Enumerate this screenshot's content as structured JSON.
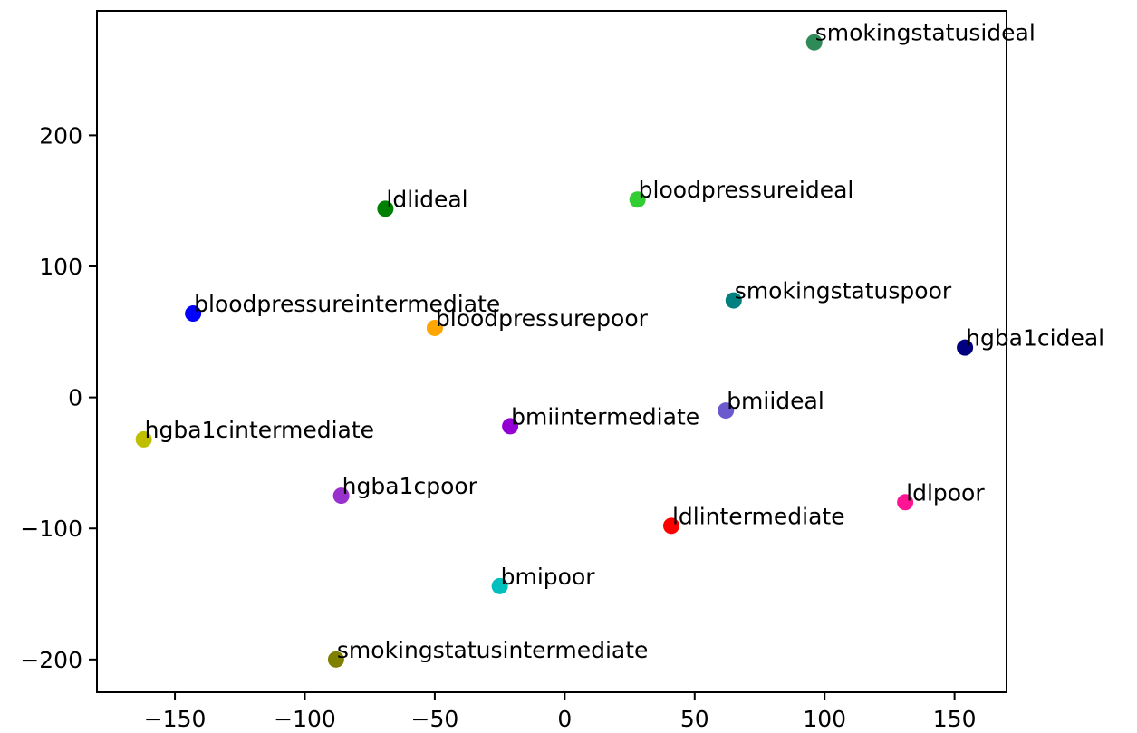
{
  "chart_data": {
    "type": "scatter",
    "title": "",
    "xlabel": "",
    "ylabel": "",
    "xlim": [
      -180,
      170
    ],
    "ylim": [
      -225,
      295
    ],
    "xticks": [
      -150,
      -100,
      -50,
      0,
      50,
      100,
      150
    ],
    "yticks": [
      -200,
      -100,
      0,
      100,
      200
    ],
    "xtick_labels": [
      "−150",
      "−100",
      "−50",
      "0",
      "50",
      "100",
      "150"
    ],
    "ytick_labels": [
      "−200",
      "−100",
      "0",
      "100",
      "200"
    ],
    "grid": false,
    "legend": "none",
    "points": [
      {
        "label": "smokingstatusideal",
        "x": 96,
        "y": 271,
        "color": "#2e8b57"
      },
      {
        "label": "ldlideal",
        "x": -69,
        "y": 144,
        "color": "#008000"
      },
      {
        "label": "bloodpressureideal",
        "x": 28,
        "y": 151,
        "color": "#32cd32"
      },
      {
        "label": "smokingstatuspoor",
        "x": 65,
        "y": 74,
        "color": "#008080"
      },
      {
        "label": "bloodpressureintermediate",
        "x": -143,
        "y": 64,
        "color": "#0000ff"
      },
      {
        "label": "bloodpressurepoor",
        "x": -50,
        "y": 53,
        "color": "#ffa500"
      },
      {
        "label": "hgba1cideal",
        "x": 154,
        "y": 38,
        "color": "#000080"
      },
      {
        "label": "bmiideal",
        "x": 62,
        "y": -10,
        "color": "#6a5acd"
      },
      {
        "label": "bmiintermediate",
        "x": -21,
        "y": -22,
        "color": "#9400d3"
      },
      {
        "label": "hgba1cintermediate",
        "x": -162,
        "y": -32,
        "color": "#bfbf00"
      },
      {
        "label": "hgba1cpoor",
        "x": -86,
        "y": -75,
        "color": "#9932cc"
      },
      {
        "label": "ldlpoor",
        "x": 131,
        "y": -80,
        "color": "#ff1493"
      },
      {
        "label": "ldlintermediate",
        "x": 41,
        "y": -98,
        "color": "#ff0000"
      },
      {
        "label": "bmipoor",
        "x": -25,
        "y": -144,
        "color": "#00bfbf"
      },
      {
        "label": "smokingstatusintermediate",
        "x": -88,
        "y": -200,
        "color": "#808000"
      }
    ]
  }
}
